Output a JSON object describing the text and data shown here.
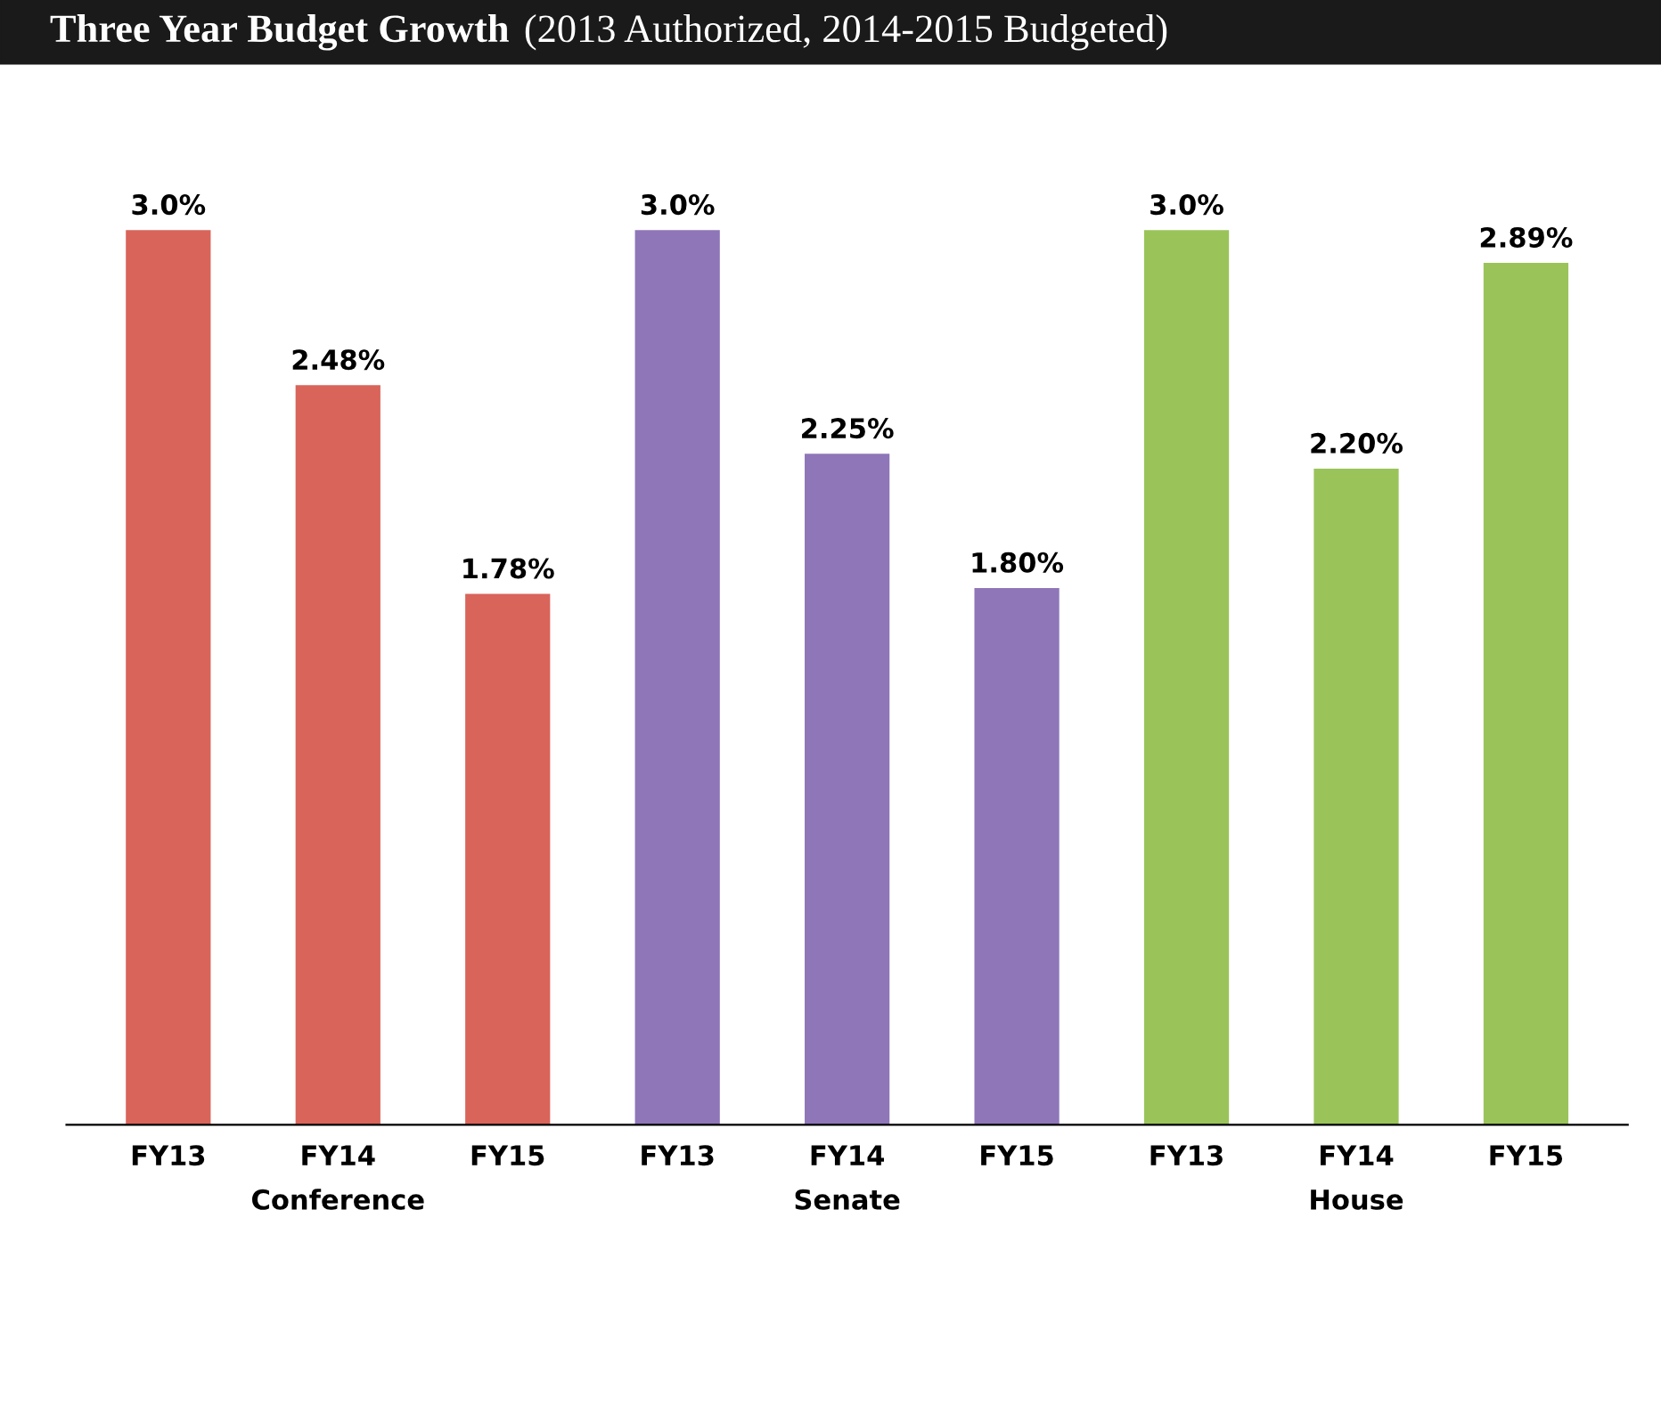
{
  "chart_data": {
    "type": "bar",
    "title": "Three Year Budget Growth",
    "subtitle": "(2013 Authorized, 2014-2015 Budgeted)",
    "categories": [
      "FY13",
      "FY14",
      "FY15",
      "FY13",
      "FY14",
      "FY15",
      "FY13",
      "FY14",
      "FY15"
    ],
    "series": [
      {
        "name": "Conference",
        "color": "#d9645a",
        "values": [
          3.0,
          2.48,
          1.78,
          null,
          null,
          null,
          null,
          null,
          null
        ],
        "value_labels": [
          "3.0%",
          "2.48%",
          "1.78%",
          null,
          null,
          null,
          null,
          null,
          null
        ]
      },
      {
        "name": "Senate",
        "color": "#8e76b8",
        "values": [
          null,
          null,
          null,
          3.0,
          2.25,
          1.8,
          null,
          null,
          null
        ],
        "value_labels": [
          null,
          null,
          null,
          "3.0%",
          "2.25%",
          "1.80%",
          null,
          null,
          null
        ]
      },
      {
        "name": "House",
        "color": "#9ac45a",
        "values": [
          null,
          null,
          null,
          null,
          null,
          null,
          3.0,
          2.2,
          2.89
        ],
        "value_labels": [
          null,
          null,
          null,
          null,
          null,
          null,
          "3.0%",
          "2.20%",
          "2.89%"
        ]
      }
    ],
    "tick_labels": "x"
  }
}
